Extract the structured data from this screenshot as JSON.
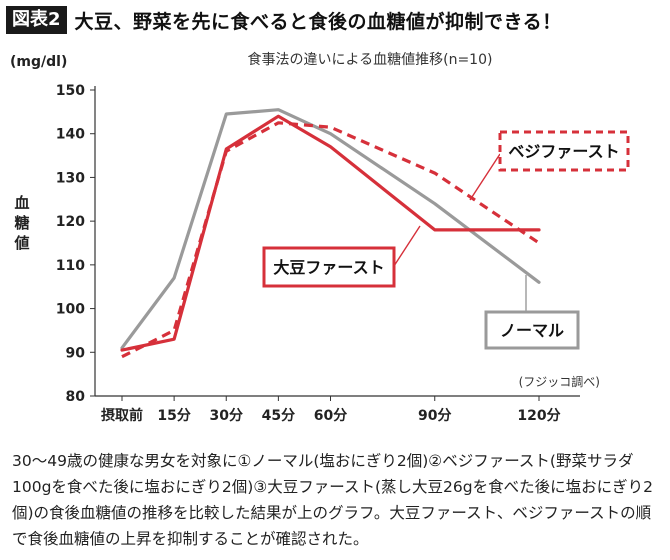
{
  "header": {
    "tag": "図表2",
    "title": "大豆、野菜を先に食べると食後の血糖値が抑制できる！"
  },
  "chart_data": {
    "type": "line",
    "title": "食事法の違いによる血糖値推移(n=10)",
    "y_unit": "(mg/dl)",
    "ylabel": "血糖値",
    "source": "(フジッコ調べ)",
    "ylim": [
      80,
      150
    ],
    "yticks": [
      80,
      90,
      100,
      110,
      120,
      130,
      140,
      150
    ],
    "x_categories": [
      "摂取前",
      "15分",
      "30分",
      "45分",
      "60分",
      "90分",
      "120分"
    ],
    "x": [
      0,
      15,
      30,
      45,
      60,
      90,
      120
    ],
    "series": [
      {
        "name": "ノーマル",
        "style": "solid",
        "color": "#9a9a9a",
        "values": [
          91,
          107,
          144.5,
          145.5,
          140,
          124,
          106
        ]
      },
      {
        "name": "ベジファースト",
        "style": "dashed",
        "color": "#d6303a",
        "values": [
          89,
          95,
          136,
          142.5,
          141.5,
          131,
          115
        ]
      },
      {
        "name": "大豆ファースト",
        "style": "solid",
        "color": "#d6303a",
        "values": [
          90.5,
          93,
          136.5,
          144,
          137,
          118,
          118
        ]
      }
    ]
  },
  "caption": "30〜49歳の健康な男女を対象に①ノーマル(塩おにぎり2個)②ベジファースト(野菜サラダ100gを食べた後に塩おにぎり2個)③大豆ファースト(蒸し大豆26gを食べた後に塩おにぎり2個)の食後血糖値の推移を比較した結果が上のグラフ。大豆ファースト、ベジファーストの順で食後血糖値の上昇を抑制することが確認された。"
}
